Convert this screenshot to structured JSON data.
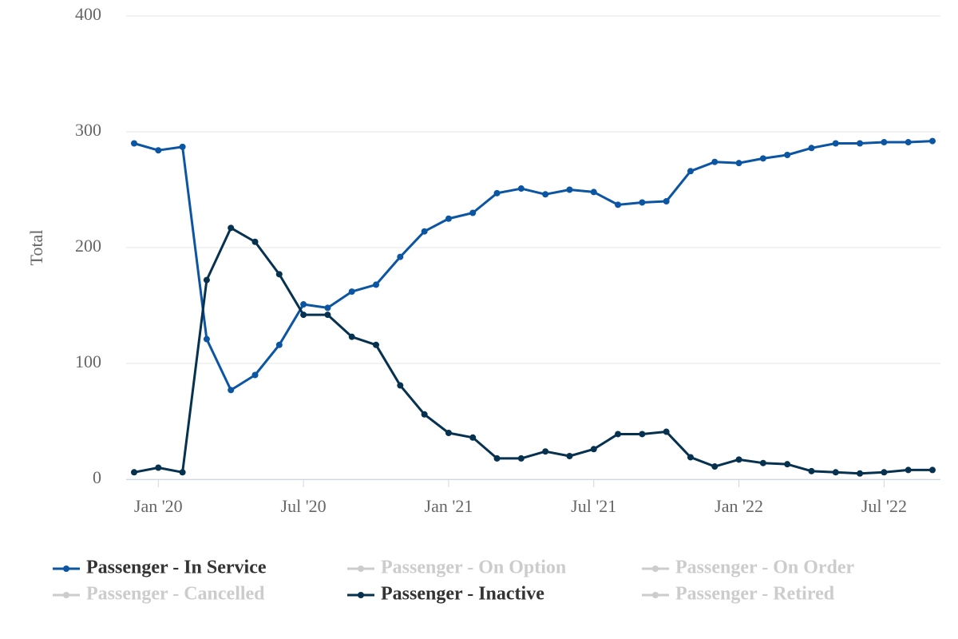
{
  "chart_data": {
    "type": "line",
    "y_label": "Total",
    "x": [
      "2019-12",
      "2020-01",
      "2020-02",
      "2020-03",
      "2020-04",
      "2020-05",
      "2020-06",
      "2020-07",
      "2020-08",
      "2020-09",
      "2020-10",
      "2020-11",
      "2020-12",
      "2021-01",
      "2021-02",
      "2021-03",
      "2021-04",
      "2021-05",
      "2021-06",
      "2021-07",
      "2021-08",
      "2021-09",
      "2021-10",
      "2021-11",
      "2021-12",
      "2022-01",
      "2022-02",
      "2022-03",
      "2022-04",
      "2022-05",
      "2022-06",
      "2022-07",
      "2022-08",
      "2022-09"
    ],
    "xticks": [
      {
        "value": "2020-01",
        "label": "Jan '20"
      },
      {
        "value": "2020-07",
        "label": "Jul '20"
      },
      {
        "value": "2021-01",
        "label": "Jan '21"
      },
      {
        "value": "2021-07",
        "label": "Jul '21"
      },
      {
        "value": "2022-01",
        "label": "Jan '22"
      },
      {
        "value": "2022-07",
        "label": "Jul '22"
      }
    ],
    "ylim": [
      0,
      400
    ],
    "yticks": [
      0,
      100,
      200,
      300,
      400
    ],
    "grid": true,
    "series": [
      {
        "name": "Passenger - In Service",
        "color": "#0b55a3",
        "visible": true,
        "values": [
          290,
          284,
          287,
          121,
          77,
          90,
          116,
          151,
          148,
          162,
          168,
          192,
          214,
          225,
          230,
          247,
          251,
          246,
          250,
          248,
          237,
          239,
          240,
          266,
          274,
          273,
          277,
          280,
          286,
          290,
          290,
          291,
          291,
          292
        ]
      },
      {
        "name": "Passenger - On Option",
        "color": "#cccccc",
        "visible": false
      },
      {
        "name": "Passenger - On Order",
        "color": "#cccccc",
        "visible": false
      },
      {
        "name": "Passenger - Cancelled",
        "color": "#cccccc",
        "visible": false
      },
      {
        "name": "Passenger - Inactive",
        "color": "#06314f",
        "visible": true,
        "values": [
          6,
          10,
          6,
          172,
          217,
          205,
          177,
          142,
          142,
          123,
          116,
          81,
          56,
          40,
          36,
          18,
          18,
          24,
          20,
          26,
          39,
          39,
          41,
          19,
          11,
          17,
          14,
          13,
          7,
          6,
          5,
          6,
          8,
          8
        ]
      },
      {
        "name": "Passenger - Retired",
        "color": "#cccccc",
        "visible": false
      }
    ]
  }
}
